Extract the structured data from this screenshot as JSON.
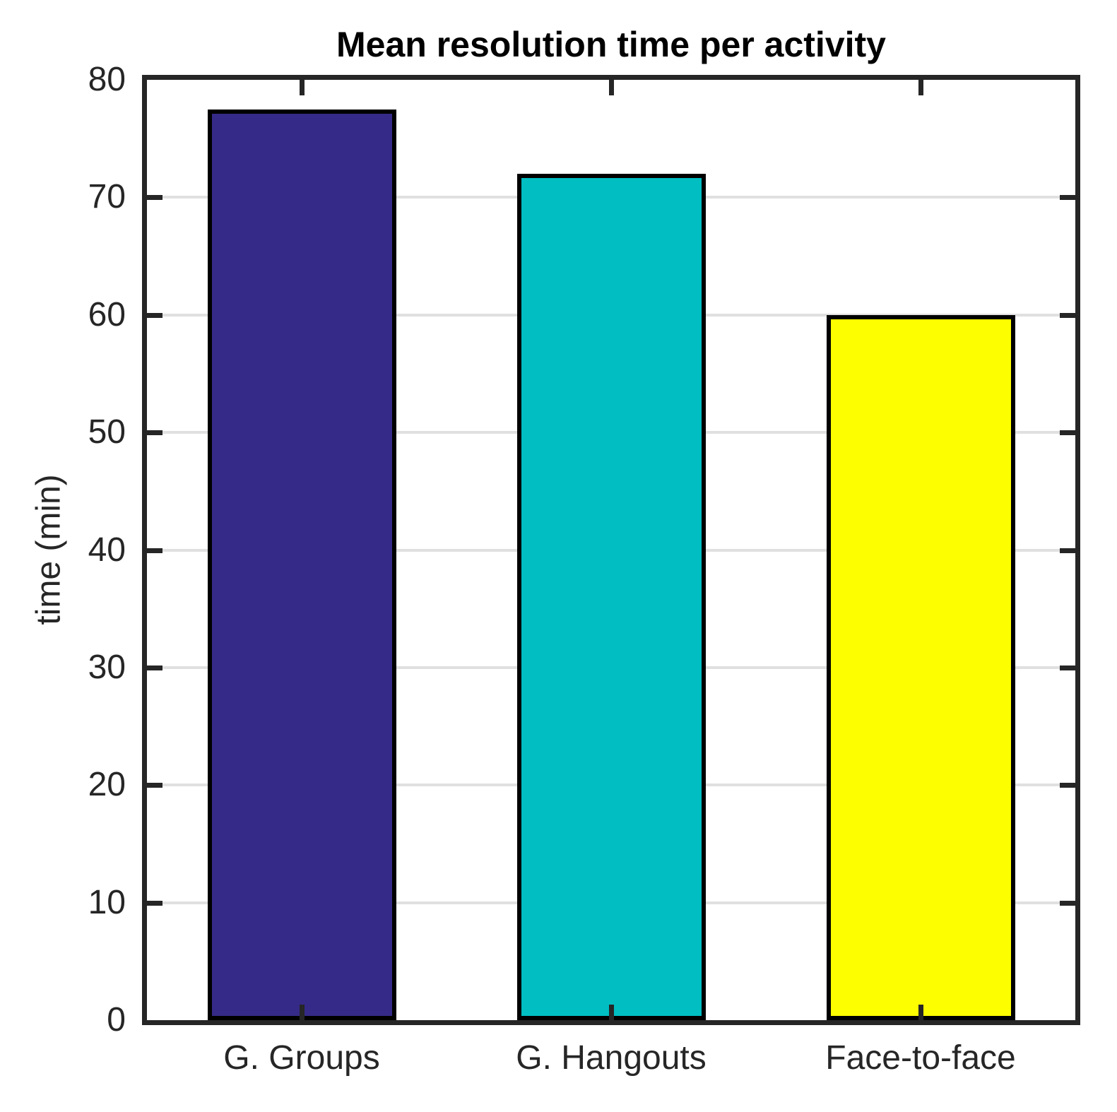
{
  "chart_data": {
    "type": "bar",
    "title": "Mean resolution time per activity",
    "ylabel": "time (min)",
    "xlabel": "",
    "categories": [
      "G. Groups",
      "G. Hangouts",
      "Face-to-face"
    ],
    "values": [
      77.5,
      72,
      60
    ],
    "bar_colors": [
      "#352A87",
      "#00BEC2",
      "#FDFF00"
    ],
    "bar_edge_color": "#000000",
    "ylim": [
      0,
      80
    ],
    "yticks": [
      0,
      10,
      20,
      30,
      40,
      50,
      60,
      70,
      80
    ],
    "ytick_labels": [
      "0",
      "10",
      "20",
      "30",
      "40",
      "50",
      "60",
      "70",
      "80"
    ],
    "grid": "horizontal-only",
    "legend": "none",
    "colors": {
      "axis": "#262626",
      "grid": "#E0E0E0",
      "text": "#262626",
      "title": "#000000",
      "background": "#FFFFFF"
    }
  }
}
